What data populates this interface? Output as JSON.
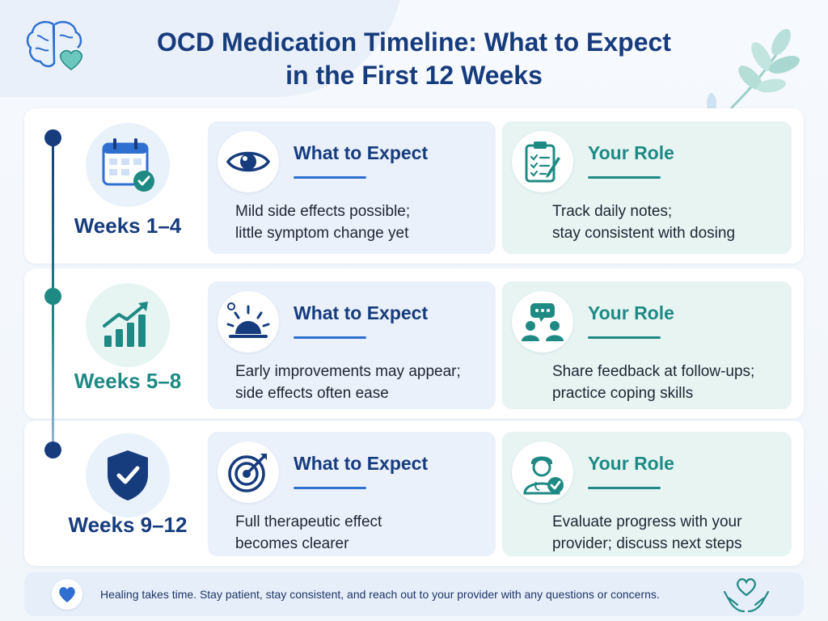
{
  "title": {
    "line1": "OCD Medication Timeline: What to Expect",
    "line2": "in the First 12 Weeks"
  },
  "colors": {
    "navy": "#173c7d",
    "teal": "#1f8a84",
    "expect_card_bg": "#eaf1fb",
    "role_card_bg": "#e7f4f2"
  },
  "periods": [
    {
      "label": "Weeks 1–4",
      "icon": "calendar-check-icon",
      "expect": {
        "icon": "eye-icon",
        "heading": "What to Expect",
        "lines": [
          "Mild side effects possible;",
          "little symptom change yet"
        ]
      },
      "role": {
        "icon": "clipboard-checklist-icon",
        "heading": "Your Role",
        "lines": [
          "Track daily notes;",
          "stay consistent with dosing"
        ]
      }
    },
    {
      "label": "Weeks 5–8",
      "icon": "growth-chart-icon",
      "expect": {
        "icon": "sunrise-icon",
        "heading": "What to Expect",
        "lines": [
          "Early improvements may appear;",
          "side effects often ease"
        ]
      },
      "role": {
        "icon": "conversation-people-icon",
        "heading": "Your Role",
        "lines": [
          "Share feedback at follow-ups;",
          "practice coping skills"
        ]
      }
    },
    {
      "label": "Weeks 9–12",
      "icon": "shield-check-icon",
      "expect": {
        "icon": "target-icon",
        "heading": "What to Expect",
        "lines": [
          "Full therapeutic effect",
          "becomes clearer"
        ]
      },
      "role": {
        "icon": "doctor-check-icon",
        "heading": "Your Role",
        "lines": [
          "Evaluate progress with your",
          "provider; discuss next steps"
        ]
      }
    }
  ],
  "footer": {
    "text": "Healing takes time. Stay patient, stay consistent, and reach out to your provider with any questions or concerns.",
    "left_icon": "heart-icon",
    "right_icon": "hands-heart-icon"
  },
  "decor": {
    "logo_icon": "brain-heart-icon",
    "leaves_icon": "leaves-icon"
  }
}
